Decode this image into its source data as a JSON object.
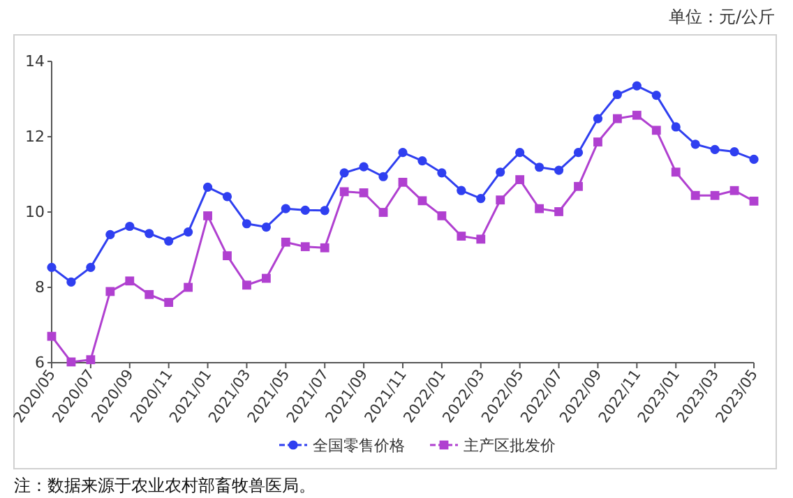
{
  "chart_data": {
    "type": "line",
    "ylabel": "单位：元/公斤",
    "annotations": [
      "注：数据来源于农业农村部畜牧兽医局。"
    ],
    "categories": [
      "2020/05",
      null,
      "2020/07",
      null,
      "2020/09",
      null,
      "2020/11",
      null,
      "2021/01",
      null,
      "2021/03",
      null,
      "2021/05",
      null,
      "2021/07",
      null,
      "2021/09",
      null,
      "2021/11",
      null,
      "2022/01",
      null,
      "2022/03",
      null,
      "2022/05",
      null,
      "2022/07",
      null,
      "2022/09",
      null,
      "2022/11",
      null,
      "2023/01",
      null,
      "2023/03",
      null,
      "2023/05"
    ],
    "ylim": [
      6,
      14
    ],
    "yticks": [
      6,
      8,
      10,
      12,
      14
    ],
    "grid": false,
    "legend": "bottom",
    "line_style": "solid",
    "series": [
      {
        "name": "全国零售价格",
        "color": "#2f3ff0",
        "marker": "circle",
        "values": [
          8.53,
          8.14,
          8.53,
          9.4,
          9.62,
          9.43,
          9.23,
          9.47,
          10.66,
          10.41,
          9.69,
          9.6,
          10.09,
          10.05,
          10.04,
          11.04,
          11.2,
          10.94,
          11.58,
          11.36,
          11.04,
          10.57,
          10.36,
          11.06,
          11.58,
          11.19,
          11.11,
          11.58,
          12.48,
          13.12,
          13.35,
          13.1,
          12.26,
          11.8,
          11.66,
          11.6,
          11.4
        ]
      },
      {
        "name": "主产区批发价",
        "color": "#b040d0",
        "marker": "square",
        "values": [
          6.7,
          6.02,
          6.08,
          7.89,
          8.17,
          7.81,
          7.6,
          8.0,
          9.9,
          8.84,
          8.06,
          8.24,
          9.2,
          9.08,
          9.05,
          10.54,
          10.51,
          9.99,
          10.79,
          10.3,
          9.9,
          9.36,
          9.28,
          10.32,
          10.86,
          10.09,
          10.01,
          10.68,
          11.86,
          12.48,
          12.57,
          12.17,
          11.06,
          10.44,
          10.44,
          10.57,
          10.29
        ]
      }
    ]
  }
}
